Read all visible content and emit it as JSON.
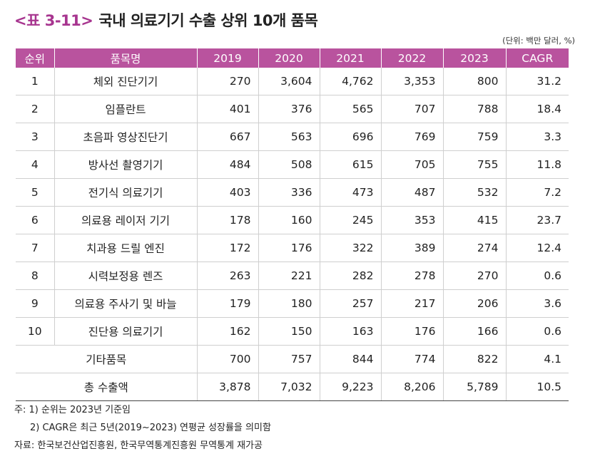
{
  "title": {
    "tag": "<표 3-11>",
    "text": "국내 의료기기 수출 상위 10개 품목"
  },
  "unit": "(단위: 백만 달러, %)",
  "table": {
    "headers": [
      "순위",
      "품목명",
      "2019",
      "2020",
      "2021",
      "2022",
      "2023",
      "CAGR"
    ],
    "rows": [
      {
        "rank": "1",
        "name": "체외 진단기기",
        "v": [
          "270",
          "3,604",
          "4,762",
          "3,353",
          "800",
          "31.2"
        ]
      },
      {
        "rank": "2",
        "name": "임플란트",
        "v": [
          "401",
          "376",
          "565",
          "707",
          "788",
          "18.4"
        ]
      },
      {
        "rank": "3",
        "name": "초음파 영상진단기",
        "v": [
          "667",
          "563",
          "696",
          "769",
          "759",
          "3.3"
        ]
      },
      {
        "rank": "4",
        "name": "방사선 촬영기기",
        "v": [
          "484",
          "508",
          "615",
          "705",
          "755",
          "11.8"
        ]
      },
      {
        "rank": "5",
        "name": "전기식 의료기기",
        "v": [
          "403",
          "336",
          "473",
          "487",
          "532",
          "7.2"
        ]
      },
      {
        "rank": "6",
        "name": "의료용 레이저 기기",
        "v": [
          "178",
          "160",
          "245",
          "353",
          "415",
          "23.7"
        ]
      },
      {
        "rank": "7",
        "name": "치과용 드릴 엔진",
        "v": [
          "172",
          "176",
          "322",
          "389",
          "274",
          "12.4"
        ]
      },
      {
        "rank": "8",
        "name": "시력보정용 렌즈",
        "v": [
          "263",
          "221",
          "282",
          "278",
          "270",
          "0.6"
        ]
      },
      {
        "rank": "9",
        "name": "의료용 주사기 및 바늘",
        "v": [
          "179",
          "180",
          "257",
          "217",
          "206",
          "3.6"
        ]
      },
      {
        "rank": "10",
        "name": "진단용 의료기기",
        "v": [
          "162",
          "150",
          "163",
          "176",
          "166",
          "0.6"
        ]
      }
    ],
    "others": {
      "name": "기타품목",
      "v": [
        "700",
        "757",
        "844",
        "774",
        "822",
        "4.1"
      ]
    },
    "total": {
      "name": "총 수출액",
      "v": [
        "3,878",
        "7,032",
        "9,223",
        "8,206",
        "5,789",
        "10.5"
      ]
    }
  },
  "notes": [
    "주: 1) 순위는 2023년 기준임",
    "2) CAGR은 최근 5년(2019~2023) 연평균 성장률을 의미함",
    "자료: 한국보건산업진흥원, 한국무역통계진흥원 무역통계 재가공"
  ]
}
